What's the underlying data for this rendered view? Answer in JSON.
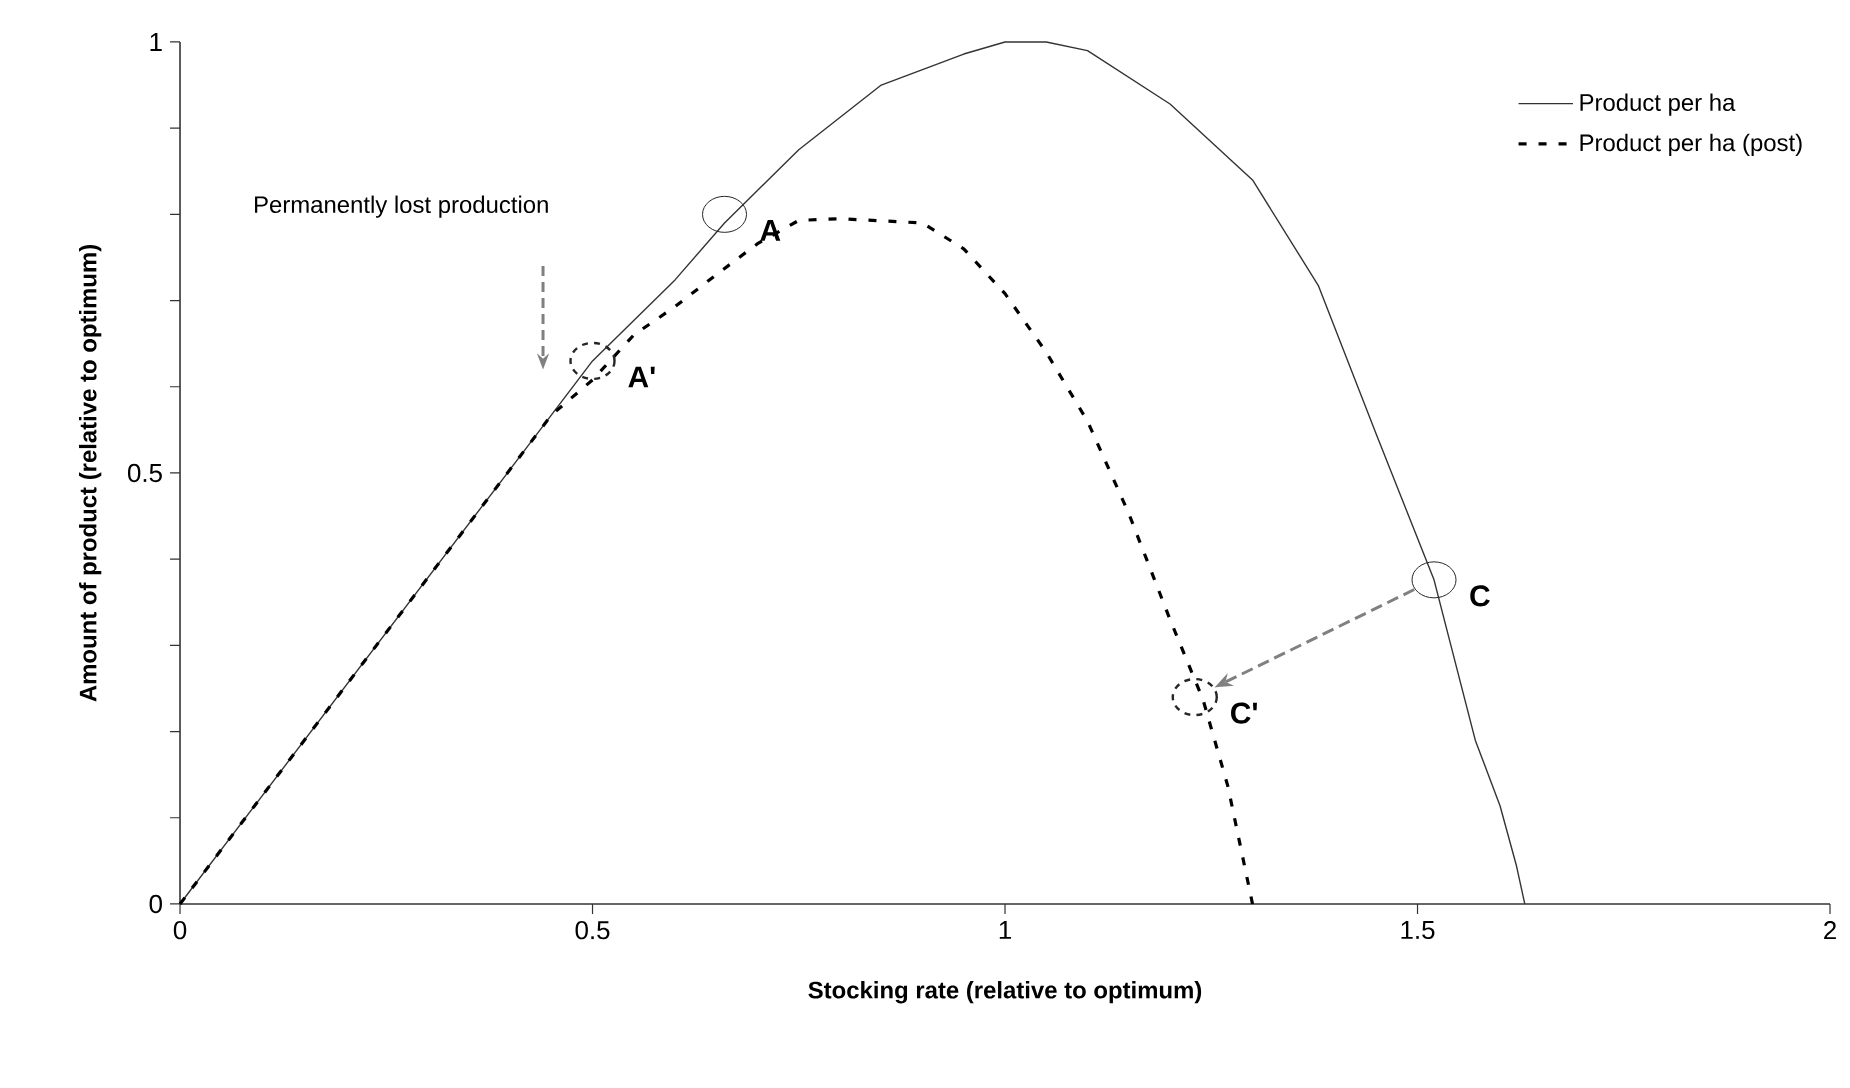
{
  "chart_data": {
    "type": "line",
    "xlabel": "Stocking rate (relative to optimum)",
    "ylabel": "Amount of product (relative to optimum)",
    "xlim": [
      0,
      2
    ],
    "ylim": [
      0,
      1
    ],
    "xticks": [
      0,
      0.5,
      1,
      1.5,
      2
    ],
    "yticks": [
      0,
      {
        "value": 0.1,
        "label": null
      },
      {
        "value": 0.2,
        "label": null
      },
      {
        "value": 0.3,
        "label": null
      },
      {
        "value": 0.4,
        "label": null
      },
      0.5,
      {
        "value": 0.6,
        "label": null
      },
      {
        "value": 0.7,
        "label": null
      },
      {
        "value": 0.8,
        "label": null
      },
      {
        "value": 0.9,
        "label": null
      },
      1
    ],
    "legend": "top right",
    "grid": false,
    "series": [
      {
        "name": "Product per ha",
        "color": "#333333",
        "line_style": "solid",
        "x": [
          0,
          0.5,
          0.6,
          0.66,
          0.75,
          0.85,
          0.95,
          1.0,
          1.05,
          1.1,
          1.2,
          1.3,
          1.38,
          1.45,
          1.52,
          1.57,
          1.6,
          1.62,
          1.63
        ],
        "values": [
          0,
          0.63,
          0.724,
          0.79,
          0.875,
          0.95,
          0.986,
          1.0,
          1.0,
          0.99,
          0.928,
          0.84,
          0.717,
          0.545,
          0.376,
          0.19,
          0.114,
          0.044,
          0
        ]
      },
      {
        "name": "Product per ha (post)",
        "color": "#000000",
        "line_style": "dashed",
        "x": [
          0,
          0.45,
          0.5,
          0.55,
          0.6,
          0.65,
          0.7,
          0.75,
          0.8,
          0.9,
          0.95,
          1.0,
          1.05,
          1.1,
          1.15,
          1.2,
          1.24,
          1.27,
          1.3
        ],
        "values": [
          0,
          0.567,
          0.608,
          0.66,
          0.693,
          0.73,
          0.766,
          0.793,
          0.795,
          0.79,
          0.76,
          0.708,
          0.64,
          0.56,
          0.453,
          0.33,
          0.237,
          0.137,
          0
        ]
      }
    ],
    "annotations": [
      "Permanently lost production",
      {
        "text": "A",
        "x": 0.66,
        "y": 0.8
      },
      {
        "text": "A'",
        "x": 0.5,
        "y": 0.63
      },
      {
        "text": "C",
        "x": 1.52,
        "y": 0.376
      },
      {
        "text": "C'",
        "x": 1.23,
        "y": 0.24
      }
    ]
  }
}
